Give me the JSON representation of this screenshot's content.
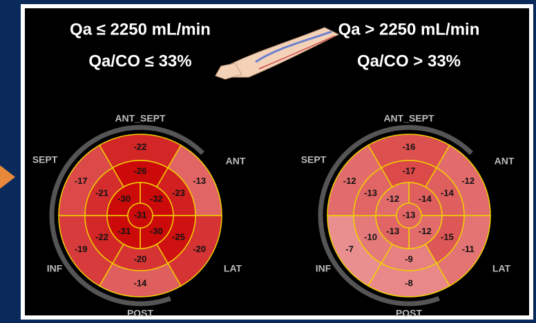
{
  "panels": [
    {
      "heading": "Qa ≤ 2250 mL/min",
      "subheading": "Qa/CO ≤ 33%",
      "labels": {
        "ant_sept": "ANT_SEPT",
        "ant": "ANT",
        "lat": "LAT",
        "post": "POST",
        "inf": "INF",
        "sept": "SEPT"
      },
      "basal": [
        -22,
        -13,
        -20,
        -14,
        -19,
        -17
      ],
      "mid": [
        -26,
        -23,
        -25,
        -20,
        -22,
        -21
      ],
      "apical": [
        -32,
        -30,
        -31,
        -30
      ],
      "apex": -31
    },
    {
      "heading": "Qa > 2250 mL/min",
      "subheading": "Qa/CO > 33%",
      "labels": {
        "ant_sept": "ANT_SEPT",
        "ant": "ANT",
        "lat": "LAT",
        "post": "POST",
        "inf": "INF",
        "sept": "SEPT"
      },
      "basal": [
        -16,
        -12,
        -11,
        -8,
        -7,
        -12
      ],
      "mid": [
        -17,
        -14,
        -15,
        -9,
        -10,
        -13
      ],
      "apical": [
        -14,
        -12,
        -13,
        -12
      ],
      "apex": -13
    }
  ]
}
